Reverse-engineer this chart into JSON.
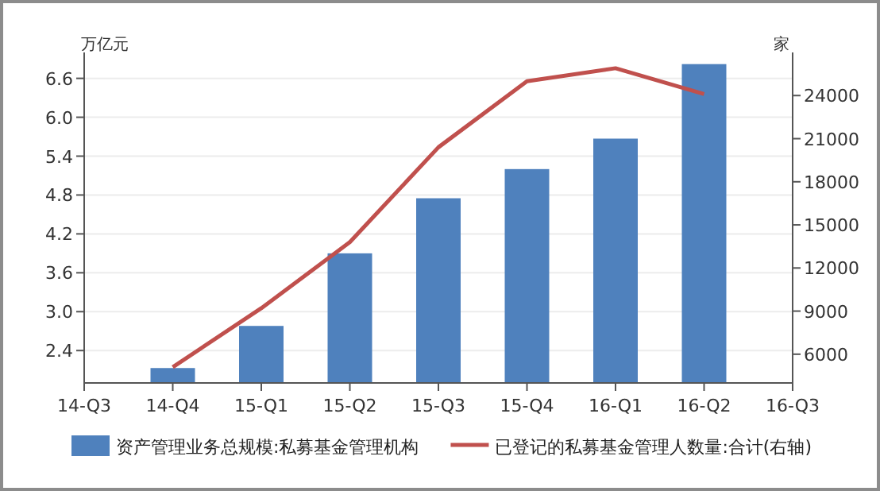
{
  "chart_data": {
    "type": "bar",
    "ylabel": "万亿元",
    "y2label": "家",
    "categories": [
      "14-Q3",
      "14-Q4",
      "15-Q1",
      "15-Q2",
      "15-Q3",
      "15-Q4",
      "16-Q1",
      "16-Q2",
      "16-Q3"
    ],
    "series": [
      {
        "name": "资产管理业务总规模:私募基金管理机构",
        "color": "#4f81bd",
        "values": [
          null,
          2.13,
          2.78,
          3.9,
          4.75,
          5.2,
          5.67,
          6.82,
          null
        ]
      },
      {
        "name": "已登记的私募基金管理人数量:合计(右轴)",
        "type": "line",
        "axis": "y2",
        "color": "#c0504d",
        "values": [
          null,
          5100,
          9200,
          13800,
          20400,
          25000,
          25900,
          24100,
          null
        ]
      }
    ],
    "ylim": [
      1.9,
      7.0
    ],
    "yticks": [
      2.4,
      {
        "value": 3,
        "label": "3.0"
      },
      3.6,
      4.2,
      4.8,
      5.4,
      {
        "value": 6,
        "label": "6.0"
      },
      6.6
    ],
    "y2lim": [
      4000,
      27000
    ],
    "y2ticks": [
      6000,
      9000,
      12000,
      15000,
      18000,
      21000,
      24000
    ],
    "grid": "y",
    "legend": "bottom"
  }
}
